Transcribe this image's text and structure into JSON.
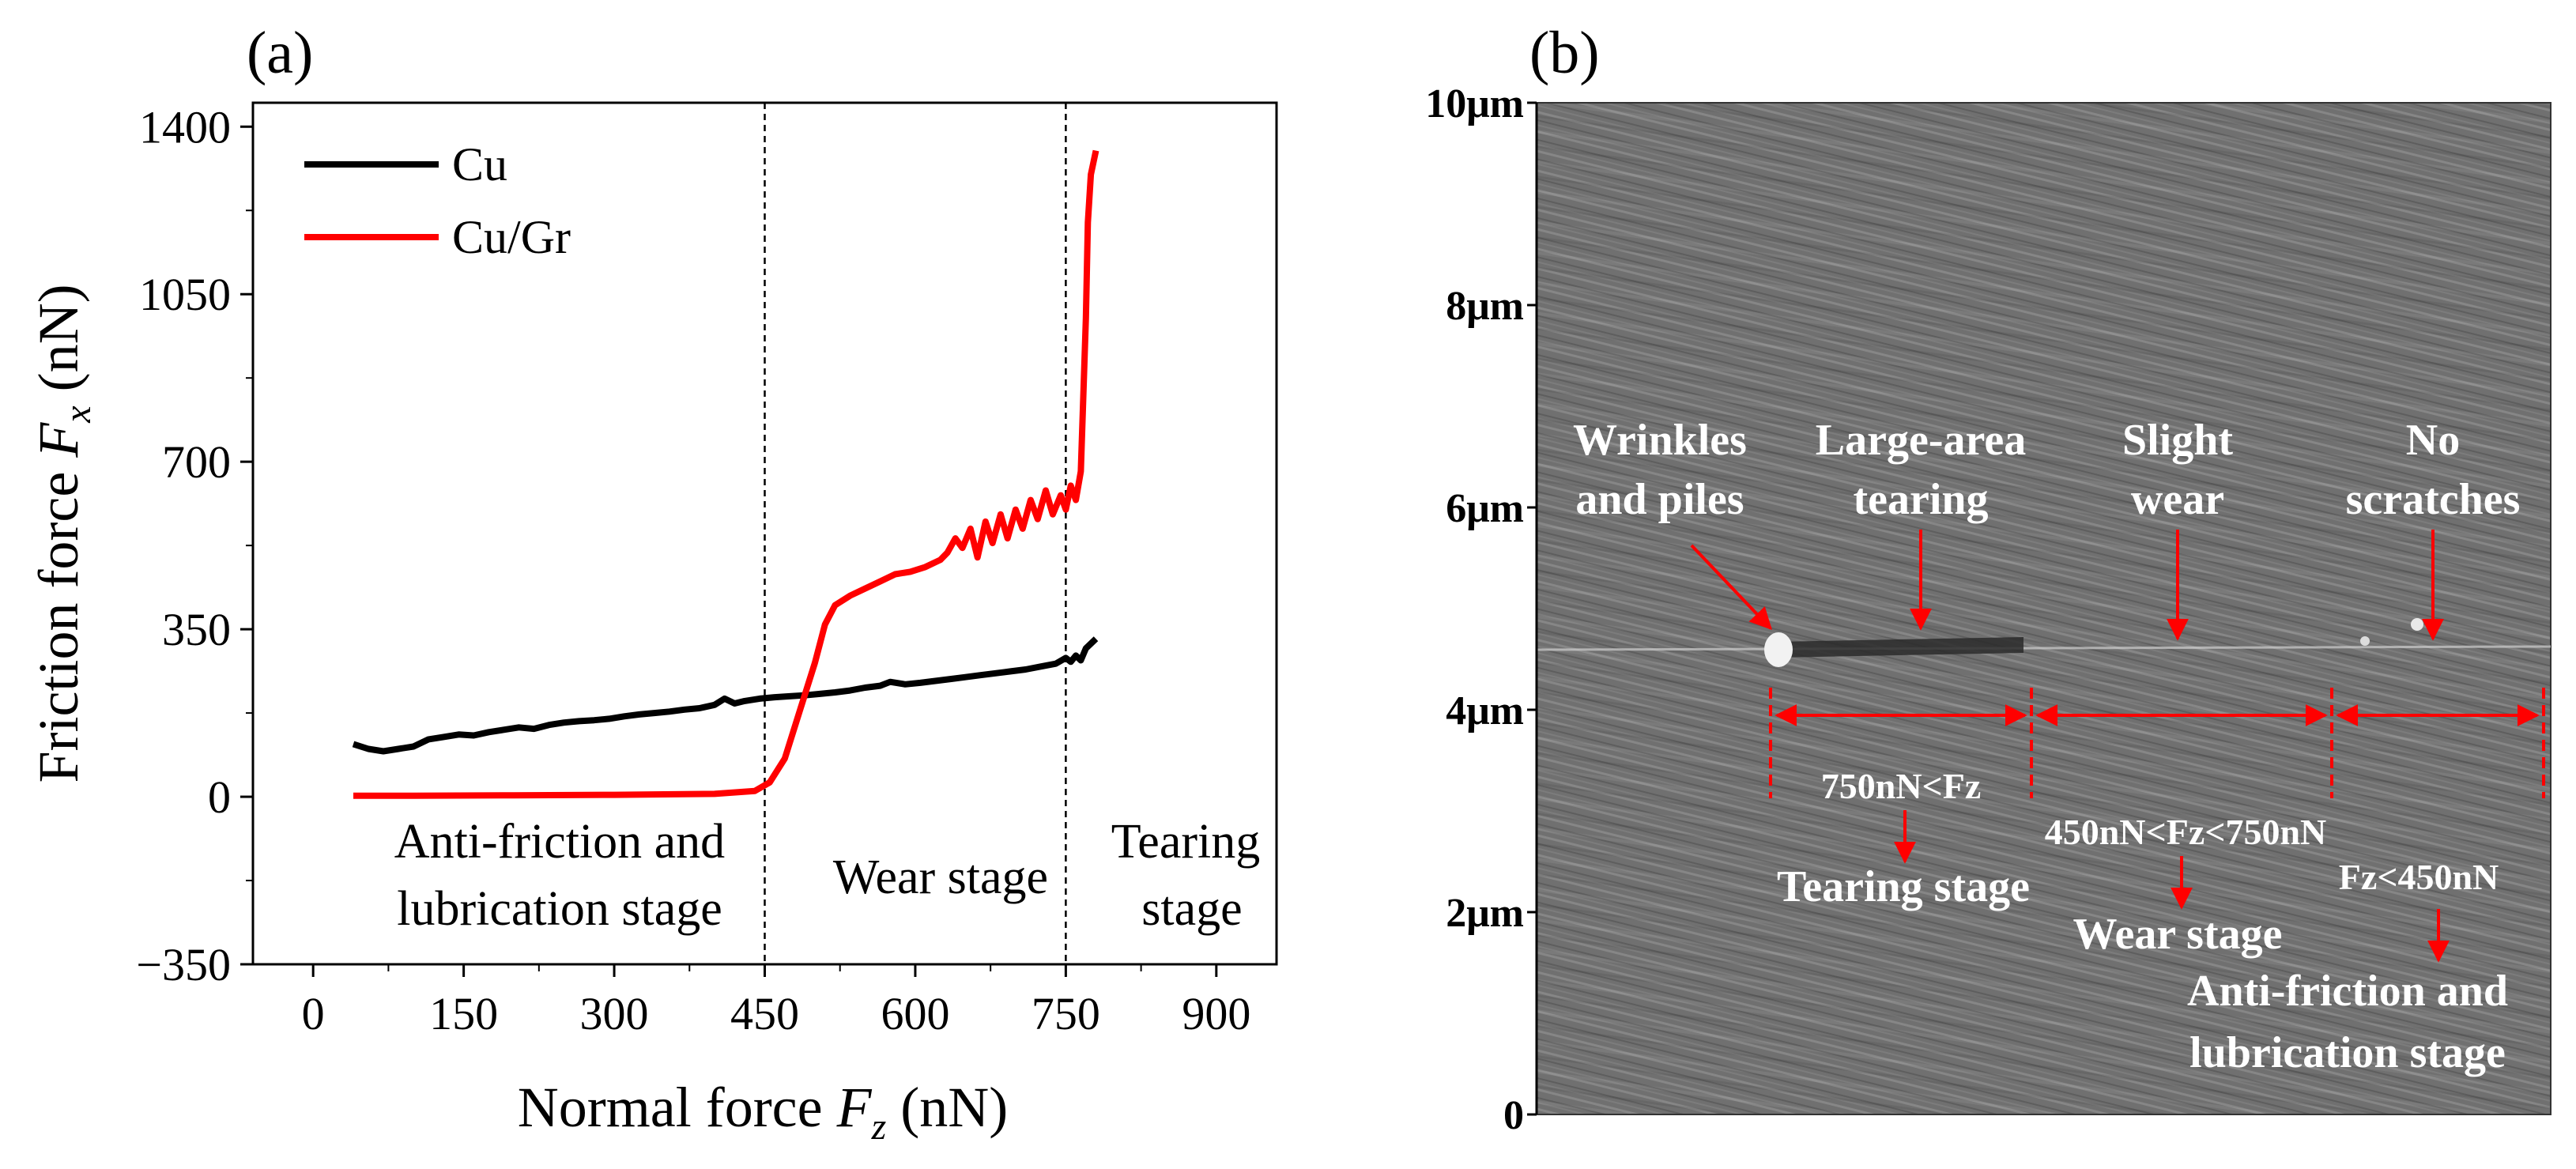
{
  "figure": {
    "panel_a_label": "(a)",
    "panel_b_label": "(b)"
  },
  "chart_data": [
    {
      "type": "line",
      "panel": "(a)",
      "title": "",
      "xlabel": {
        "prefix": "Normal force ",
        "symbol": "F",
        "subscript": "z",
        "suffix": " (nN)"
      },
      "ylabel": {
        "prefix": "Friction force ",
        "symbol": "F",
        "subscript": "x",
        "suffix": " (nN)"
      },
      "xlim": [
        -60,
        960
      ],
      "ylim": [
        -350,
        1450
      ],
      "xticks": [
        0,
        150,
        300,
        450,
        600,
        750,
        900
      ],
      "yticks": [
        -350,
        0,
        350,
        700,
        1050,
        1400
      ],
      "xtick_labels": [
        "0",
        "150",
        "300",
        "450",
        "600",
        "750",
        "900"
      ],
      "ytick_labels": [
        "−350",
        "0",
        "350",
        "700",
        "1050",
        "1400"
      ],
      "legend_position": "top-left",
      "series": [
        {
          "name": "Cu",
          "color": "#000000",
          "x": [
            40,
            55,
            70,
            85,
            100,
            115,
            130,
            145,
            160,
            175,
            190,
            205,
            220,
            235,
            250,
            265,
            280,
            295,
            310,
            325,
            340,
            355,
            370,
            385,
            400,
            410,
            420,
            430,
            445,
            460,
            475,
            490,
            505,
            520,
            535,
            550,
            565,
            575,
            590,
            605,
            620,
            635,
            650,
            665,
            680,
            695,
            710,
            725,
            740,
            750,
            755,
            760,
            765,
            770,
            780
          ],
          "y": [
            110,
            100,
            95,
            100,
            105,
            120,
            125,
            130,
            128,
            135,
            140,
            145,
            142,
            150,
            155,
            158,
            160,
            163,
            168,
            172,
            175,
            178,
            182,
            185,
            192,
            205,
            195,
            200,
            205,
            208,
            210,
            212,
            215,
            218,
            222,
            228,
            232,
            240,
            235,
            238,
            242,
            246,
            250,
            254,
            258,
            262,
            266,
            272,
            278,
            290,
            282,
            295,
            285,
            310,
            330
          ]
        },
        {
          "name": "Cu/Gr",
          "color": "#ff0000",
          "x": [
            40,
            100,
            200,
            300,
            400,
            440,
            455,
            470,
            485,
            500,
            510,
            520,
            535,
            550,
            565,
            580,
            595,
            610,
            625,
            632,
            640,
            647,
            655,
            662,
            670,
            677,
            685,
            692,
            700,
            707,
            715,
            722,
            730,
            737,
            745,
            750,
            755,
            760,
            765,
            770,
            772,
            775,
            780
          ],
          "y": [
            2,
            2,
            3,
            4,
            6,
            12,
            30,
            80,
            180,
            280,
            360,
            400,
            420,
            435,
            450,
            465,
            470,
            480,
            495,
            510,
            540,
            520,
            560,
            500,
            575,
            530,
            590,
            540,
            600,
            560,
            620,
            580,
            640,
            590,
            630,
            600,
            650,
            620,
            680,
            1000,
            1200,
            1300,
            1350
          ]
        }
      ],
      "vlines": [
        450,
        750
      ],
      "stage_labels": [
        {
          "lines": [
            "Anti-friction and",
            "lubrication stage"
          ]
        },
        {
          "lines": [
            "Wear stage"
          ]
        },
        {
          "lines": [
            "Tearing",
            "stage"
          ]
        }
      ]
    },
    {
      "type": "image",
      "panel": "(b)",
      "description_axis": "y",
      "yticks": [
        0,
        2,
        4,
        6,
        8,
        10
      ],
      "ytick_labels": [
        "0",
        "2μm",
        "4μm",
        "6μm",
        "8μm",
        "10μm"
      ],
      "feature_labels": [
        {
          "lines": [
            "Wrinkles",
            "and piles"
          ]
        },
        {
          "lines": [
            "Large-area",
            "tearing"
          ]
        },
        {
          "lines": [
            "Slight",
            "wear"
          ]
        },
        {
          "lines": [
            "No",
            "scratches"
          ]
        }
      ],
      "stage_annotations": [
        {
          "range": "750nN<Fz",
          "stage": [
            "Tearing stage"
          ]
        },
        {
          "range": "450nN<Fz<750nN",
          "stage": [
            "Wear stage"
          ]
        },
        {
          "range": "Fz<450nN",
          "stage": [
            "Anti-friction and",
            "lubrication stage"
          ]
        }
      ],
      "colors": {
        "annotation": "#ff0000",
        "annotation_text": "#ffffff"
      }
    }
  ]
}
